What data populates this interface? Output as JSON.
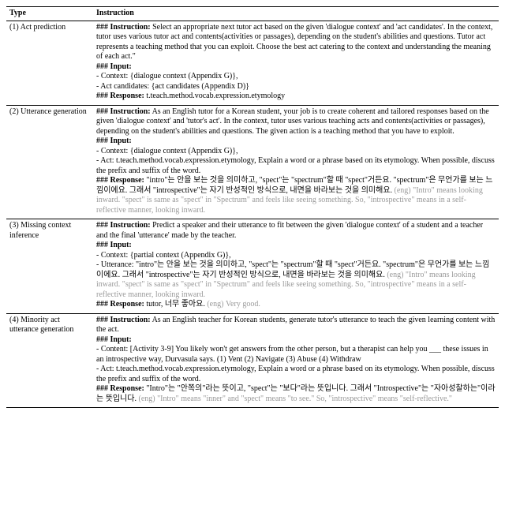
{
  "columns": [
    "Type",
    "Instruction"
  ],
  "rows": [
    {
      "type": "(1) Act prediction",
      "blocks": [
        {
          "heading": "### Instruction:",
          "text": " Select an appropriate next tutor act based on the given 'dialogue context' and 'act candidates'. In the context, tutor uses various tutor act and contents(activities or passages), depending on the student's abilities and questions. Tutor act represents a teaching method that you can exploit. Choose the best act catering to the context and understanding the meaning of each act.\""
        },
        {
          "heading": "### Input:",
          "text": ""
        },
        {
          "heading": "",
          "text": "- Context: {dialogue context (Appendix G)},"
        },
        {
          "heading": "",
          "text": "- Act candidates: {act candidates (Appendix D)}"
        },
        {
          "heading": "### Response:",
          "text": " t.teach.method.vocab.expression.etymology"
        }
      ]
    },
    {
      "type": "(2) Utterance generation",
      "blocks": [
        {
          "heading": "### Instruction:",
          "text": " As an English tutor for a Korean student, your job is to create coherent and tailored responses based on the given 'dialogue context' and 'tutor's act'. In the context, tutor uses various teaching acts and contents(activities or passages), depending on the student's abilities and questions. The given action is a teaching method that you have to exploit."
        },
        {
          "heading": "### Input:",
          "text": ""
        },
        {
          "heading": "",
          "text": "- Context: {dialogue context (Appendix G)},"
        },
        {
          "heading": "",
          "text": "- Act: t.teach.method.vocab.expression.etymology, Explain a word or a phrase based on its etymology. When possible, discuss the prefix and suffix of the word."
        },
        {
          "heading": "### Response:",
          "text": " \"intro\"는 안을 보는 것을 의미하고, \"spect\"는 \"spectrum\"할 때 \"spect\"거든요. \"spectrum\"은 무언가를 보는 느낌이에요. 그래서 \"introspective\"는 자기 반성적인 방식으로, 내면을 바라보는 것을 의미해요.",
          "grayText": " (eng) \"Intro\" means looking inward. \"spect\" is same as \"spect\" in \"Spectrum\" and feels like seeing something. So, \"introspective\" means in a self-reflective manner, looking inward."
        }
      ]
    },
    {
      "type": "(3) Missing context inference",
      "blocks": [
        {
          "heading": "### Instruction:",
          "text": " Predict a speaker and their utterance to fit between the given 'dialogue context' of a student and a teacher and the final 'utterance' made by the teacher."
        },
        {
          "heading": "### Input:",
          "text": ""
        },
        {
          "heading": "",
          "text": "- Context: {partial context (Appendix G)},"
        },
        {
          "heading": "",
          "text": "- Utterance: \"intro\"는 안을 보는 것을 의미하고, \"spect\"는 \"spectrum\"할 때 \"spect\"거든요. \"spectrum\"은 무언가를 보는 느낌이에요. 그래서 \"introspective\"는 자기 반성적인 방식으로, 내면을 바라보는 것을 의미해요.",
          "grayText": " (eng) \"Intro\" means looking inward. \"spect\" is same as \"spect\" in \"Spectrum\" and feels like seeing something. So, \"introspective\" means in a self-reflective manner, looking inward."
        },
        {
          "heading": "### Response:",
          "text": " tutor, 너무 좋아요.",
          "grayText": " (eng) Very good."
        }
      ]
    },
    {
      "type": "(4) Minority act utterance generation",
      "blocks": [
        {
          "heading": "### Instruction:",
          "text": " As an English teacher for Korean students, generate tutor's utterance to teach the given learning content with the act."
        },
        {
          "heading": "### Input:",
          "text": ""
        },
        {
          "heading": "",
          "text": "- Content: [Activity 3-9] You likely won't get answers from the other person, but a therapist can help you ___ these issues in an introspective way, Durvasula says. (1) Vent (2) Navigate (3) Abuse (4) Withdraw"
        },
        {
          "heading": "",
          "text": "- Act: t.teach.method.vocab.expression.etymology, Explain a word or a phrase based on its etymology. When possible, discuss the prefix and suffix of the word."
        },
        {
          "heading": "### Response:",
          "text": " \"Intro\"는 \"안쪽의\"라는 뜻이고, \"spect\"는 \"보다\"라는 뜻입니다. 그래서 \"Introspective\"는 \"자아성찰하는\"이라는 뜻입니다.",
          "grayText": " (eng) \"Intro\" means \"inner\" and \"spect\" means \"to see.\" So, \"introspective\" means \"self-reflective.\""
        }
      ]
    }
  ]
}
